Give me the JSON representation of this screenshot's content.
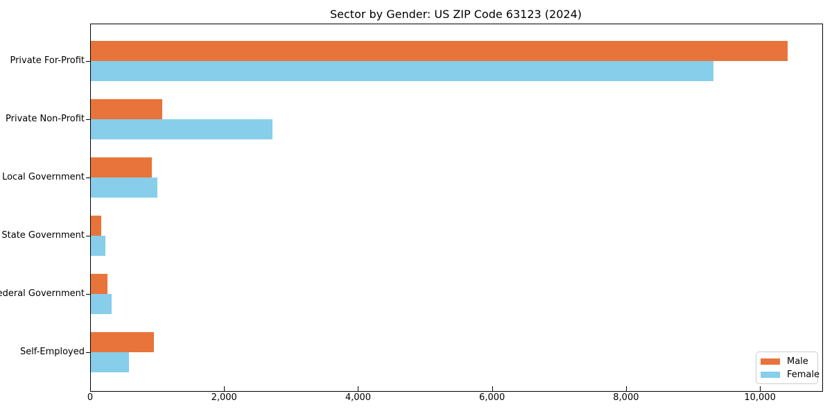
{
  "title": "Sector by Gender: US ZIP Code 63123 (2024)",
  "chart_data": {
    "type": "bar",
    "orientation": "horizontal",
    "title": "Sector by Gender: US ZIP Code 63123 (2024)",
    "categories": [
      "Private For-Profit",
      "Private Non-Profit",
      "Local Government",
      "State Government",
      "Federal Government",
      "Self-Employed"
    ],
    "series": [
      {
        "name": "Male",
        "color": "#e8743b",
        "values": [
          10400,
          1070,
          910,
          160,
          250,
          940
        ]
      },
      {
        "name": "Female",
        "color": "#87ceeb",
        "values": [
          9300,
          2710,
          990,
          220,
          310,
          570
        ]
      }
    ],
    "xlabel": "",
    "ylabel": "",
    "xlim": [
      0,
      10920
    ],
    "xticks": [
      {
        "value": 0,
        "label": "0"
      },
      {
        "value": 2000,
        "label": "2,000"
      },
      {
        "value": 4000,
        "label": "4,000"
      },
      {
        "value": 6000,
        "label": "6,000"
      },
      {
        "value": 8000,
        "label": "8,000"
      },
      {
        "value": 10000,
        "label": "10,000"
      }
    ],
    "grid": false,
    "legend": {
      "position": "lower right",
      "entries": [
        "Male",
        "Female"
      ]
    }
  },
  "colors": {
    "male": "#e8743b",
    "female": "#87ceeb",
    "spine": "#000000",
    "legend_border": "#cccccc",
    "background": "#ffffff"
  }
}
